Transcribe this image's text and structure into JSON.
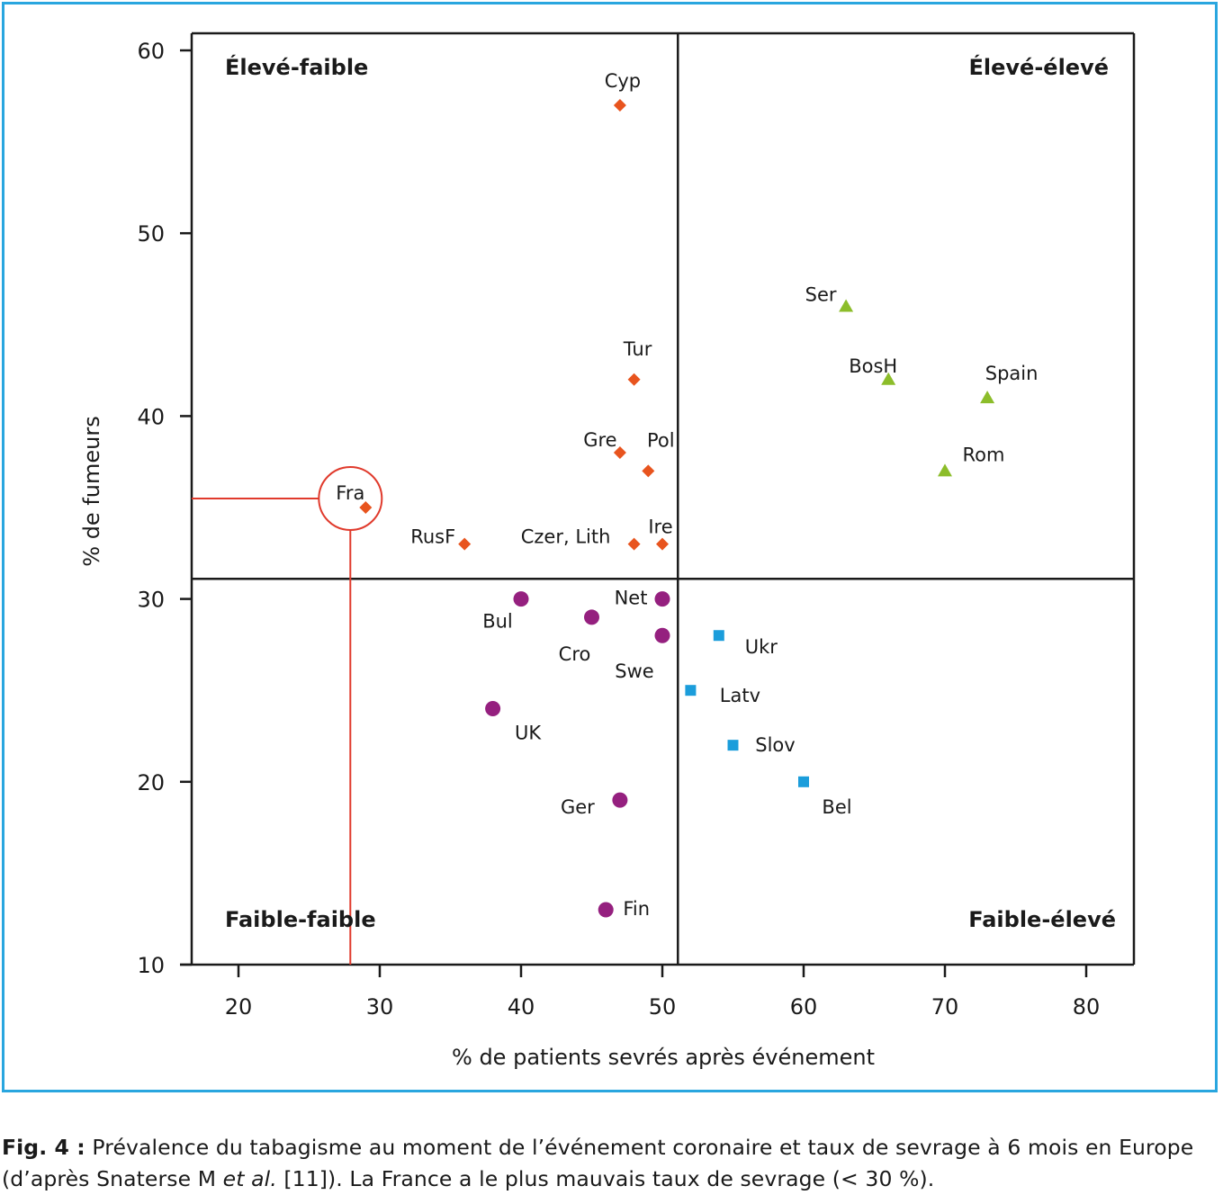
{
  "chart_data": {
    "type": "scatter",
    "xlabel": "% de patients sevrés après événement",
    "ylabel": "% de fumeurs",
    "xlim": [
      16.5,
      82.5
    ],
    "ylim": [
      10,
      61
    ],
    "x_ticks": [
      20,
      30,
      40,
      50,
      60,
      70,
      80
    ],
    "y_ticks": [
      10,
      20,
      30,
      40,
      50,
      60
    ],
    "divider_x": 51.1,
    "divider_y": 31.1,
    "grid": false,
    "quadrant_labels": {
      "top_left": "Élevé-faible",
      "top_right": "Élevé-élevé",
      "bottom_left": "Faible-faible",
      "bottom_right": "Faible-élevé"
    },
    "series": [
      {
        "marker": "diamond",
        "color": "#e8541e",
        "points": [
          {
            "label": "Cyp",
            "x": 47,
            "y": 57
          },
          {
            "label": "Tur",
            "x": 48,
            "y": 42
          },
          {
            "label": "Gre",
            "x": 47,
            "y": 38
          },
          {
            "label": "Pol",
            "x": 49,
            "y": 37
          },
          {
            "label": "Fra",
            "x": 29,
            "y": 35
          },
          {
            "label": "RusF",
            "x": 36,
            "y": 33
          },
          {
            "label": "Czer, Lith",
            "x": 48,
            "y": 33
          },
          {
            "label": "Ire",
            "x": 50,
            "y": 33
          }
        ]
      },
      {
        "marker": "triangle",
        "color": "#8cbd2a",
        "points": [
          {
            "label": "Ser",
            "x": 63,
            "y": 46
          },
          {
            "label": "BosH",
            "x": 66,
            "y": 42
          },
          {
            "label": "Spain",
            "x": 73,
            "y": 41
          },
          {
            "label": "Rom",
            "x": 70,
            "y": 37
          }
        ]
      },
      {
        "marker": "circle",
        "color": "#95207f",
        "points": [
          {
            "label": "Bul",
            "x": 40,
            "y": 30
          },
          {
            "label": "Net",
            "x": 50,
            "y": 30
          },
          {
            "label": "Cro",
            "x": 45,
            "y": 29
          },
          {
            "label": "Swe",
            "x": 50,
            "y": 28
          },
          {
            "label": "UK",
            "x": 38,
            "y": 24
          },
          {
            "label": "Ger",
            "x": 47,
            "y": 19
          },
          {
            "label": "Fin",
            "x": 46,
            "y": 13
          }
        ]
      },
      {
        "marker": "square",
        "color": "#1b9ddb",
        "points": [
          {
            "label": "Ukr",
            "x": 54,
            "y": 28
          },
          {
            "label": "Latv",
            "x": 52,
            "y": 25
          },
          {
            "label": "Slov",
            "x": 55,
            "y": 22
          },
          {
            "label": "Bel",
            "x": 60,
            "y": 20
          }
        ]
      }
    ],
    "highlight": {
      "label": "Fra",
      "color": "#e03a2c"
    }
  },
  "caption": {
    "prefix": "Fig. 4 :",
    "line1": " Prévalence du tabagisme au moment de l’événement coronaire et taux de sevrage à 6 mois en Europe",
    "line2_a": "(d’après Snaterse M ",
    "line2_italic": "et al.",
    "line2_b": " [11]). La France a le plus mauvais taux de sevrage (< 30 %)."
  }
}
